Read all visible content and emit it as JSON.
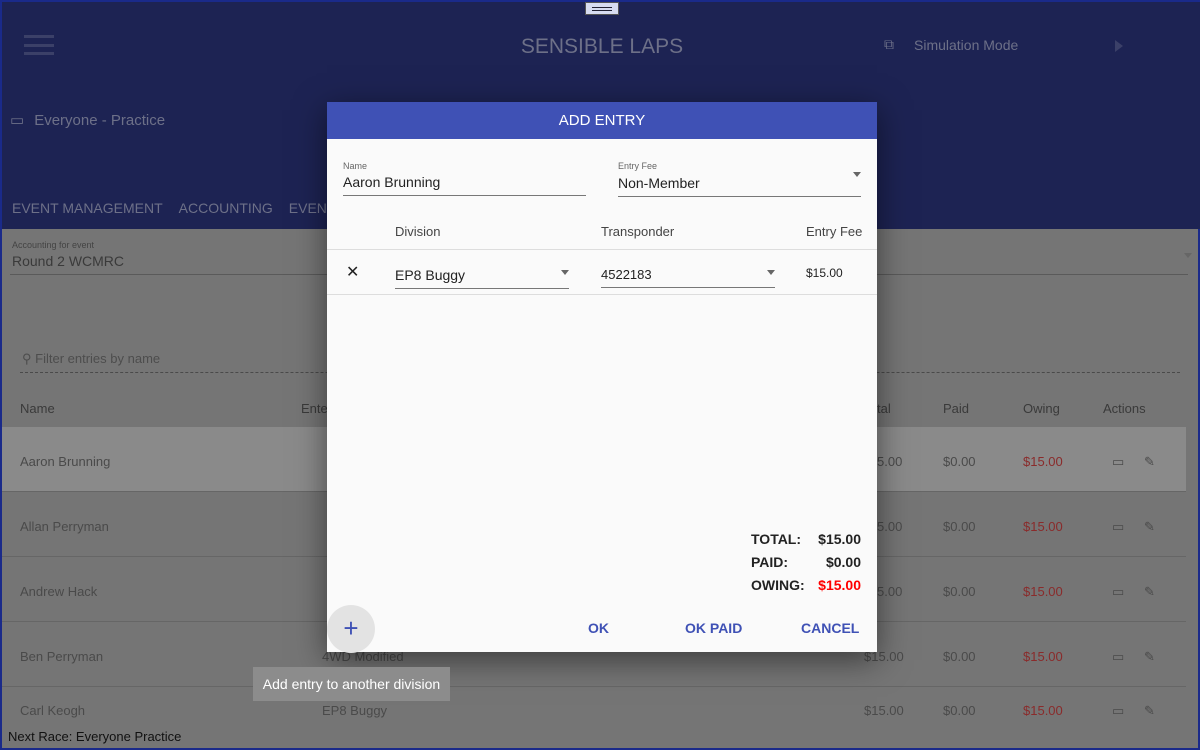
{
  "header": {
    "title": "SENSIBLE LAPS",
    "mode": "Simulation Mode",
    "event": "Everyone - Practice"
  },
  "tabs": [
    "EVENT MANAGEMENT",
    "ACCOUNTING",
    "EVENT"
  ],
  "accounting": {
    "label": "Accounting for event",
    "value": "Round 2 WCMRC"
  },
  "filter": {
    "placeholder": "Filter entries by name"
  },
  "table": {
    "headers": {
      "name": "Name",
      "entered": "Ente",
      "total": "tal",
      "paid": "Paid",
      "owing": "Owing",
      "actions": "Actions"
    },
    "rows": [
      {
        "name": "Aaron Brunning",
        "total": "5.00",
        "paid": "$0.00",
        "owing": "$15.00"
      },
      {
        "name": "Allan Perryman",
        "total": "5.00",
        "paid": "$0.00",
        "owing": "$15.00"
      },
      {
        "name": "Andrew Hack",
        "total": "5.00",
        "paid": "$0.00",
        "owing": "$15.00"
      },
      {
        "name": "Ben Perryman",
        "entered": "4WD Modified",
        "total": "$15.00",
        "paid": "$0.00",
        "owing": "$15.00"
      },
      {
        "name": "Carl Keogh",
        "entered": "EP8 Buggy",
        "total": "$15.00",
        "paid": "$0.00",
        "owing": "$15.00"
      }
    ]
  },
  "footer": "Next Race: Everyone Practice",
  "dialog": {
    "title": "ADD ENTRY",
    "name_label": "Name",
    "name_value": "Aaron Brunning",
    "fee_label": "Entry Fee",
    "fee_value": "Non-Member",
    "columns": {
      "division": "Division",
      "transponder": "Transponder",
      "fee": "Entry Fee"
    },
    "entry": {
      "division": "EP8 Buggy",
      "transponder": "4522183",
      "fee": "$15.00"
    },
    "total_label": "TOTAL:",
    "total": "$15.00",
    "paid_label": "PAID:",
    "paid": "$0.00",
    "owing_label": "OWING:",
    "owing": "$15.00",
    "ok": "OK",
    "ok_paid": "OK PAID",
    "cancel": "CANCEL",
    "add_tooltip": "Add entry to another division"
  },
  "colors": {
    "accent": "#3f51b5",
    "owing": "#ff0000"
  }
}
